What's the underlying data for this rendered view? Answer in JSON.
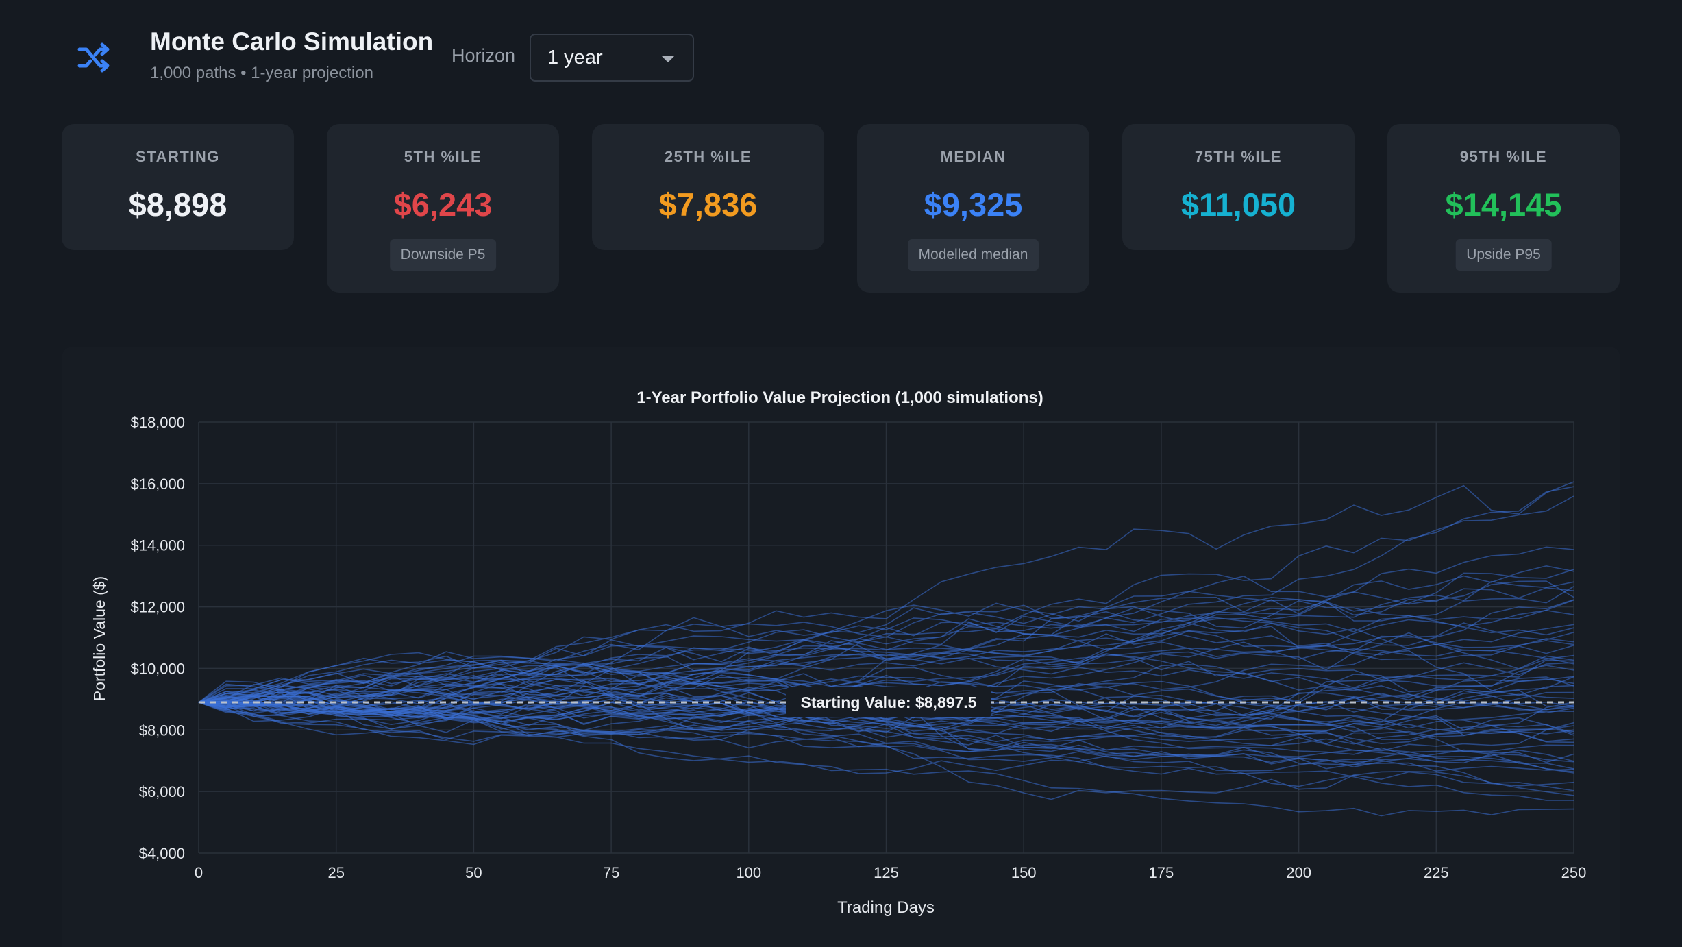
{
  "header": {
    "title": "Monte Carlo Simulation",
    "subtitle": "1,000 paths • 1-year projection",
    "horizon_label": "Horizon",
    "horizon_value": "1 year",
    "icon": "shuffle-icon"
  },
  "cards": [
    {
      "label": "STARTING",
      "value": "$8,898",
      "color": "#eef1f5",
      "badge": ""
    },
    {
      "label": "5TH %ILE",
      "value": "$6,243",
      "color": "#e0464a",
      "badge": "Downside P5"
    },
    {
      "label": "25TH %ILE",
      "value": "$7,836",
      "color": "#f29b20",
      "badge": ""
    },
    {
      "label": "MEDIAN",
      "value": "$9,325",
      "color": "#3b82f6",
      "badge": "Modelled median"
    },
    {
      "label": "75TH %ILE",
      "value": "$11,050",
      "color": "#16b1d1",
      "badge": ""
    },
    {
      "label": "95TH %ILE",
      "value": "$14,145",
      "color": "#22c05a",
      "badge": "Upside P95"
    }
  ],
  "chart_data": {
    "type": "line",
    "title": "1-Year Portfolio Value Projection (1,000 simulations)",
    "xlabel": "Trading Days",
    "ylabel": "Portfolio Value ($)",
    "xlim": [
      0,
      250
    ],
    "ylim": [
      4000,
      18000
    ],
    "x_ticks": [
      0,
      25,
      50,
      75,
      100,
      125,
      150,
      175,
      200,
      225,
      250
    ],
    "y_ticks": [
      4000,
      6000,
      8000,
      10000,
      12000,
      14000,
      16000,
      18000
    ],
    "y_tick_labels": [
      "$4,000",
      "$6,000",
      "$8,000",
      "$10,000",
      "$12,000",
      "$14,000",
      "$16,000",
      "$18,000"
    ],
    "grid": true,
    "series_color": "#3b6fd6",
    "reference_line": {
      "y": 8897.5,
      "label": "Starting Value: $8,897.5"
    },
    "num_paths_drawn": 60,
    "start_value": 8897.5,
    "end_percentiles": {
      "p5": 6243,
      "p25": 7836,
      "p50": 9325,
      "p75": 11050,
      "p95": 14145
    }
  }
}
